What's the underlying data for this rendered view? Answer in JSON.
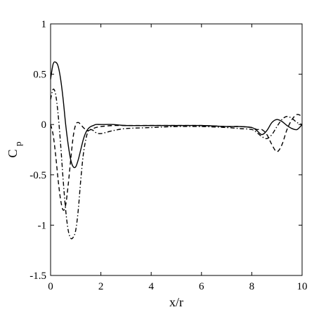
{
  "chart_data": {
    "type": "line",
    "title": "",
    "xlabel": "x/r",
    "ylabel": {
      "main": "C",
      "sub": "p"
    },
    "xlim": [
      0,
      10
    ],
    "ylim": [
      -1.5,
      1
    ],
    "xticks": [
      0,
      2,
      4,
      6,
      8,
      10
    ],
    "yticks": [
      -1.5,
      -1,
      -0.5,
      0,
      0.5,
      1
    ],
    "xtick_labels": [
      "0",
      "2",
      "4",
      "6",
      "8",
      "10"
    ],
    "ytick_labels": [
      "-1.5",
      "-1",
      "-0.5",
      "0",
      "0.5",
      "1"
    ],
    "grid": false,
    "legend": "none",
    "series": [
      {
        "style": "solid",
        "x": [
          0,
          0.1,
          0.2,
          0.3,
          0.4,
          0.5,
          0.6,
          0.7,
          0.8,
          0.9,
          1.0,
          1.1,
          1.2,
          1.3,
          1.4,
          1.5,
          1.6,
          1.7,
          1.8,
          2.0,
          2.5,
          3,
          4,
          5,
          6,
          7,
          7.5,
          8,
          8.2,
          8.4,
          8.6,
          8.8,
          9.0,
          9.2,
          9.4,
          9.6,
          9.8,
          10
        ],
        "y": [
          0.45,
          0.6,
          0.62,
          0.58,
          0.45,
          0.25,
          0.0,
          -0.2,
          -0.35,
          -0.42,
          -0.42,
          -0.35,
          -0.25,
          -0.15,
          -0.08,
          -0.04,
          -0.02,
          -0.01,
          0.0,
          0.0,
          0.0,
          -0.01,
          -0.01,
          -0.01,
          -0.01,
          -0.02,
          -0.02,
          -0.03,
          -0.06,
          -0.1,
          -0.06,
          0.02,
          0.05,
          0.03,
          -0.01,
          -0.04,
          -0.05,
          0.0
        ]
      },
      {
        "style": "dashed",
        "x": [
          0,
          0.1,
          0.2,
          0.3,
          0.4,
          0.5,
          0.6,
          0.7,
          0.8,
          0.9,
          1.0,
          1.1,
          1.2,
          1.3,
          1.4,
          1.5,
          1.6,
          1.7,
          1.8,
          2.0,
          2.5,
          3,
          4,
          5,
          6,
          7,
          7.5,
          8,
          8.2,
          8.4,
          8.6,
          8.8,
          9.0,
          9.2,
          9.4,
          9.6,
          9.8,
          10
        ],
        "y": [
          0.0,
          -0.1,
          -0.3,
          -0.55,
          -0.75,
          -0.85,
          -0.8,
          -0.6,
          -0.35,
          -0.12,
          0.0,
          0.02,
          0.0,
          -0.03,
          -0.05,
          -0.06,
          -0.05,
          -0.04,
          -0.03,
          -0.02,
          -0.01,
          -0.01,
          -0.01,
          -0.01,
          -0.01,
          -0.02,
          -0.02,
          -0.03,
          -0.05,
          -0.05,
          -0.1,
          -0.2,
          -0.27,
          -0.2,
          -0.05,
          0.05,
          0.1,
          0.08
        ]
      },
      {
        "style": "dashdot",
        "x": [
          0,
          0.1,
          0.2,
          0.3,
          0.4,
          0.5,
          0.6,
          0.7,
          0.8,
          0.9,
          1.0,
          1.1,
          1.2,
          1.3,
          1.4,
          1.5,
          1.6,
          1.7,
          1.8,
          2.0,
          2.5,
          3,
          4,
          5,
          6,
          7,
          7.5,
          8,
          8.2,
          8.4,
          8.6,
          8.8,
          9.0,
          9.2,
          9.4,
          9.6,
          9.8,
          10
        ],
        "y": [
          0.25,
          0.35,
          0.3,
          0.1,
          -0.2,
          -0.55,
          -0.85,
          -1.05,
          -1.13,
          -1.12,
          -1.05,
          -0.85,
          -0.55,
          -0.3,
          -0.15,
          -0.06,
          -0.05,
          -0.06,
          -0.08,
          -0.09,
          -0.06,
          -0.04,
          -0.03,
          -0.02,
          -0.02,
          -0.03,
          -0.04,
          -0.05,
          -0.08,
          -0.12,
          -0.14,
          -0.1,
          -0.02,
          0.05,
          0.08,
          0.06,
          0.02,
          0.0
        ]
      }
    ]
  }
}
